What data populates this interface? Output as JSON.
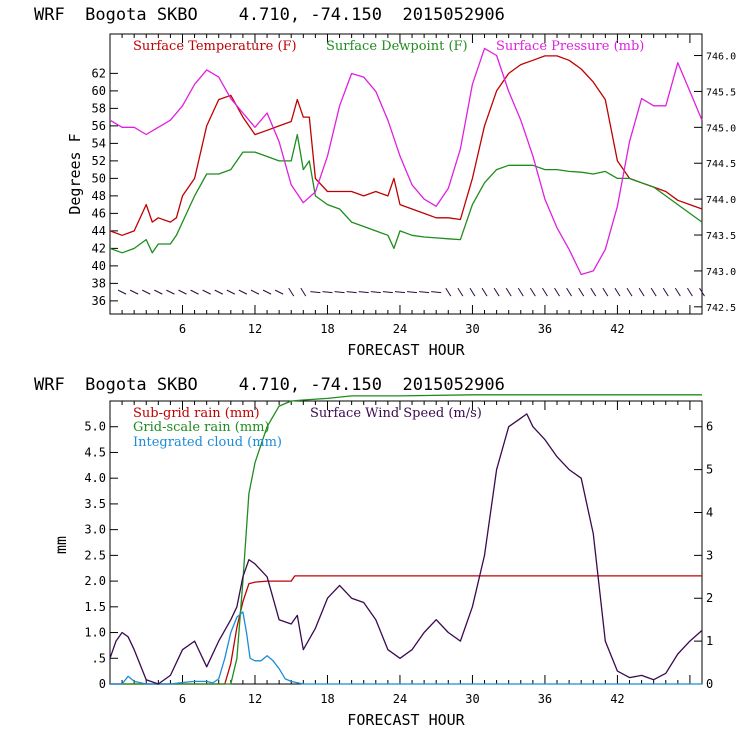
{
  "chart_data": [
    {
      "type": "line",
      "title": "WRF  Bogota SKBO    4.710, -74.150  2015052906",
      "xlabel": "FORECAST HOUR",
      "ylabel": "Degrees F",
      "xlim": [
        0,
        49
      ],
      "ylim": [
        34.5,
        66.5
      ],
      "y2lim": [
        742.4,
        746.3
      ],
      "xticks": [
        6,
        12,
        18,
        24,
        30,
        36,
        42
      ],
      "yticks": [
        36,
        38,
        40,
        42,
        44,
        46,
        48,
        50,
        52,
        54,
        56,
        58,
        60,
        62
      ],
      "y2ticks": [
        "742.5",
        "743.0",
        "743.5",
        "744.0",
        "744.5",
        "745.0",
        "745.5",
        "746.0"
      ],
      "legend_position": "top",
      "colors": {
        "temp": "#c00000",
        "dew": "#1e8c1e",
        "pres": "#e020e0"
      },
      "series": [
        {
          "name": "Surface Temperature (F)",
          "axis": "left",
          "x": [
            0,
            1,
            2,
            3,
            3.5,
            4,
            5,
            5.5,
            6,
            7,
            8,
            9,
            10,
            11,
            12,
            13,
            14,
            15,
            15.5,
            16,
            16.5,
            17,
            18,
            19,
            20,
            21,
            22,
            23,
            23.5,
            24,
            25,
            26,
            27,
            28,
            29,
            30,
            31,
            32,
            33,
            34,
            35,
            36,
            37,
            38,
            39,
            40,
            41,
            42,
            43,
            44,
            45,
            46,
            47,
            48,
            49
          ],
          "y": [
            44,
            43.5,
            44,
            47,
            45,
            45.5,
            45,
            45.5,
            48,
            50,
            56,
            59,
            59.5,
            57,
            55,
            55.5,
            56,
            56.5,
            59,
            57,
            57,
            50,
            48.5,
            48.5,
            48.5,
            48,
            48.5,
            48,
            50,
            47,
            46.5,
            46,
            45.5,
            45.5,
            45.3,
            50,
            56,
            60,
            62,
            63,
            63.5,
            64,
            64,
            63.5,
            62.5,
            61,
            59,
            52,
            50,
            49.5,
            49,
            48.5,
            47.5,
            47,
            46.5
          ]
        },
        {
          "name": "Surface Dewpoint (F)",
          "axis": "left",
          "x": [
            0,
            1,
            2,
            3,
            3.5,
            4,
            5,
            5.5,
            6,
            7,
            8,
            9,
            10,
            11,
            12,
            13,
            14,
            15,
            15.5,
            16,
            16.5,
            17,
            18,
            19,
            20,
            21,
            22,
            23,
            23.5,
            24,
            25,
            26,
            27,
            28,
            29,
            30,
            31,
            32,
            33,
            34,
            35,
            36,
            37,
            38,
            39,
            40,
            41,
            42,
            43,
            44,
            45,
            46,
            47,
            48,
            49
          ],
          "y": [
            42,
            41.5,
            42,
            43,
            41.5,
            42.5,
            42.5,
            43.5,
            45,
            48,
            50.5,
            50.5,
            51,
            53,
            53,
            52.5,
            52,
            52,
            55,
            51,
            52,
            48,
            47,
            46.5,
            45,
            44.5,
            44,
            43.5,
            42,
            44,
            43.5,
            43.3,
            43.2,
            43.1,
            43,
            47,
            49.5,
            51,
            51.5,
            51.5,
            51.5,
            51,
            51,
            50.8,
            50.7,
            50.5,
            50.8,
            50,
            50,
            49.5,
            49,
            48,
            47,
            46,
            45
          ]
        },
        {
          "name": "Surface Pressure (mb)",
          "axis": "right",
          "x": [
            0,
            1,
            2,
            3,
            4,
            5,
            6,
            7,
            8,
            9,
            10,
            11,
            12,
            13,
            14,
            15,
            16,
            17,
            18,
            19,
            20,
            21,
            22,
            23,
            24,
            25,
            26,
            27,
            28,
            29,
            30,
            31,
            32,
            33,
            34,
            35,
            36,
            37,
            38,
            39,
            40,
            41,
            42,
            43,
            44,
            45,
            46,
            47,
            48,
            49
          ],
          "y": [
            745.1,
            745.0,
            745.0,
            744.9,
            745.0,
            745.1,
            745.3,
            745.6,
            745.8,
            745.7,
            745.4,
            745.2,
            745.0,
            745.2,
            744.8,
            744.2,
            743.95,
            744.1,
            744.6,
            745.3,
            745.75,
            745.7,
            745.5,
            745.1,
            744.6,
            744.2,
            744.0,
            743.9,
            744.15,
            744.7,
            745.6,
            746.1,
            746.0,
            745.5,
            745.1,
            744.6,
            744.0,
            743.6,
            743.3,
            742.95,
            743.0,
            743.3,
            743.9,
            744.8,
            745.4,
            745.3,
            745.3,
            745.9,
            745.5,
            745.1
          ]
        }
      ],
      "wind_barbs": {
        "y": 37,
        "count": 49
      }
    },
    {
      "type": "line",
      "title": "WRF  Bogota SKBO    4.710, -74.150  2015052906",
      "xlabel": "FORECAST HOUR",
      "ylabel": "mm",
      "xlim": [
        0,
        49
      ],
      "ylim": [
        0,
        5.5
      ],
      "y2lim": [
        0,
        6.6
      ],
      "xticks": [
        6,
        12,
        18,
        24,
        30,
        36,
        42
      ],
      "yticks": [
        0,
        0.5,
        1.0,
        1.5,
        2.0,
        2.5,
        3.0,
        3.5,
        4.0,
        4.5,
        5.0
      ],
      "ytick_labels": [
        "0",
        ".5",
        "1.0",
        "1.5",
        "2.0",
        "2.5",
        "3.0",
        "3.5",
        "4.0",
        "4.5",
        "5.0"
      ],
      "y2ticks": [
        "0",
        "1",
        "2",
        "3",
        "4",
        "5",
        "6"
      ],
      "legend_position": "top-left",
      "colors": {
        "subgrid": "#c00000",
        "grid": "#1e8c1e",
        "cloud": "#1a8cd8",
        "wind": "#3a0a50"
      },
      "series": [
        {
          "name": "Sub-grid rain (mm)",
          "axis": "left",
          "x": [
            0,
            9.5,
            10,
            10.5,
            11,
            11.5,
            12,
            13,
            14,
            15,
            15.3,
            16,
            20,
            30,
            40,
            49
          ],
          "y": [
            0,
            0,
            0.4,
            1.1,
            1.6,
            1.95,
            1.98,
            2.0,
            2.0,
            2.0,
            2.1,
            2.1,
            2.1,
            2.1,
            2.1,
            2.1
          ]
        },
        {
          "name": "Grid-scale rain (mm)",
          "axis": "left",
          "x": [
            0,
            10,
            10.5,
            11,
            11.5,
            12,
            13,
            14,
            15,
            16,
            18,
            20,
            24,
            30,
            36,
            49
          ],
          "y": [
            0,
            0,
            0.5,
            2.0,
            3.7,
            4.3,
            5.0,
            5.4,
            5.5,
            5.52,
            5.55,
            5.6,
            5.6,
            5.62,
            5.62,
            5.62
          ]
        },
        {
          "name": "Integrated cloud (mm)",
          "axis": "left",
          "x": [
            0,
            1,
            1.5,
            2,
            3,
            4,
            5,
            6,
            7,
            8,
            8.5,
            9,
            9.5,
            10,
            10.5,
            11,
            11.3,
            11.6,
            12,
            12.5,
            13,
            13.5,
            14,
            14.5,
            15,
            16,
            49
          ],
          "y": [
            0,
            0,
            0.15,
            0.05,
            0,
            0,
            0,
            0.03,
            0.05,
            0.05,
            0.02,
            0.1,
            0.5,
            1.0,
            1.3,
            1.4,
            1.0,
            0.5,
            0.45,
            0.45,
            0.55,
            0.45,
            0.3,
            0.1,
            0.05,
            0,
            0
          ]
        },
        {
          "name": "Surface Wind Speed (m/s)",
          "axis": "right",
          "x": [
            0,
            0.5,
            1,
            1.5,
            2,
            3,
            4,
            5,
            6,
            7,
            8,
            9,
            10,
            10.5,
            11,
            11.5,
            12,
            13,
            14,
            15,
            15.5,
            16,
            17,
            18,
            19,
            20,
            21,
            22,
            23,
            24,
            25,
            26,
            27,
            28,
            29,
            30,
            31,
            32,
            33,
            34,
            34.5,
            35,
            36,
            37,
            38,
            39,
            40,
            41,
            42,
            43,
            44,
            45,
            46,
            47,
            48,
            49
          ],
          "y": [
            0.6,
            1.0,
            1.2,
            1.1,
            0.8,
            0.1,
            0.0,
            0.2,
            0.8,
            1.0,
            0.4,
            1.0,
            1.5,
            1.8,
            2.5,
            2.9,
            2.8,
            2.5,
            1.5,
            1.4,
            1.6,
            0.8,
            1.3,
            2.0,
            2.3,
            2.0,
            1.9,
            1.5,
            0.8,
            0.6,
            0.8,
            1.2,
            1.5,
            1.2,
            1.0,
            1.8,
            3.0,
            5.0,
            6.0,
            6.2,
            6.3,
            6.0,
            5.7,
            5.3,
            5.0,
            4.8,
            3.5,
            1.0,
            0.3,
            0.15,
            0.2,
            0.1,
            0.25,
            0.7,
            1.0,
            1.25
          ]
        }
      ]
    }
  ]
}
